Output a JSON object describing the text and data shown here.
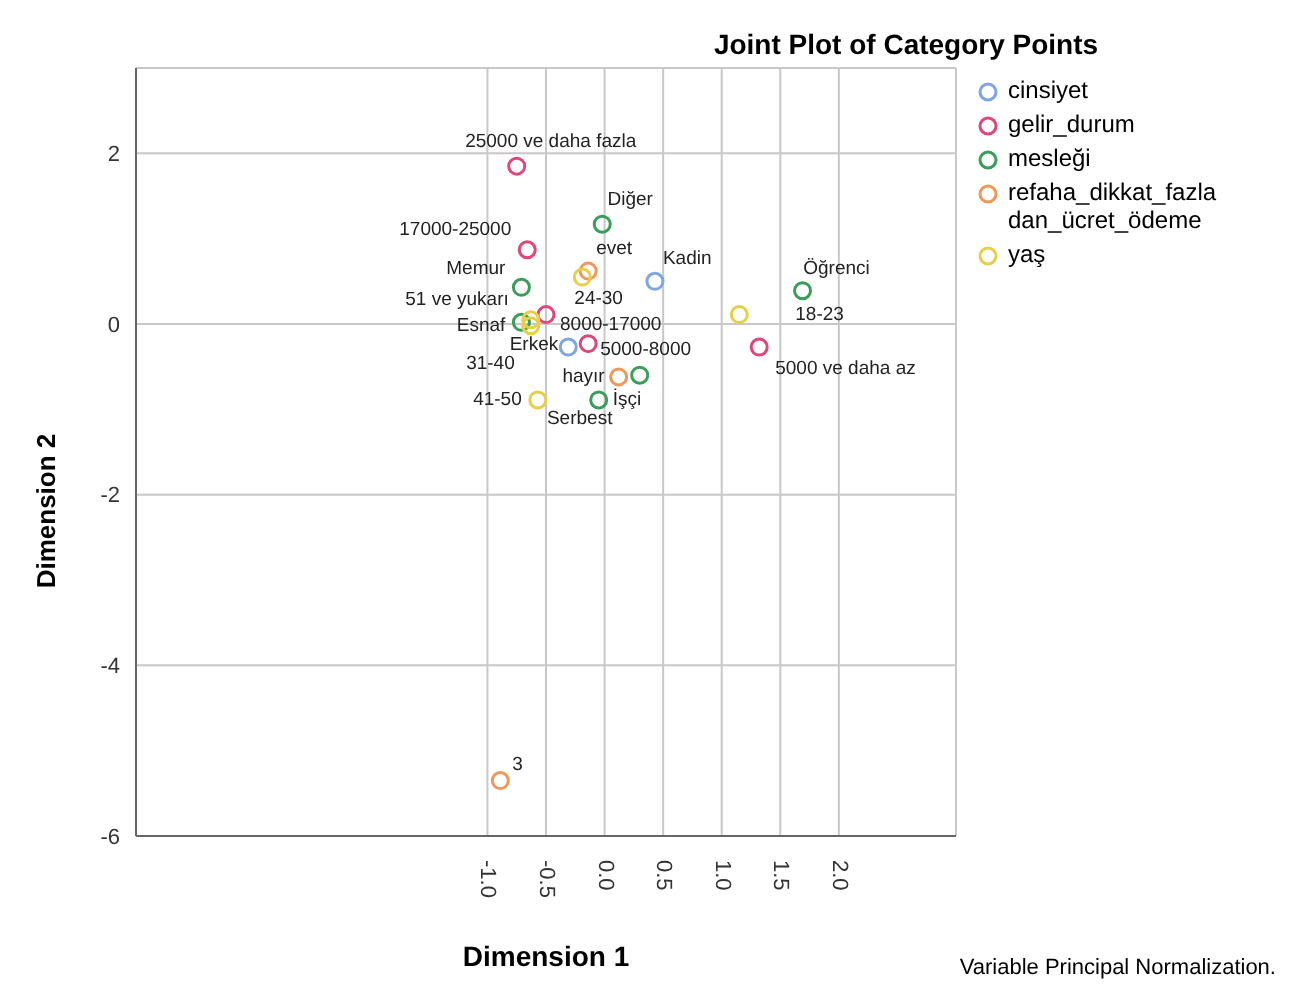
{
  "chart_data": {
    "type": "scatter",
    "title": "Joint Plot of Category Points",
    "xlabel": "Dimension 1",
    "ylabel": "Dimension 2",
    "xlim": [
      -4,
      3
    ],
    "ylim": [
      -6,
      3
    ],
    "xticks": [
      {
        "value": -1,
        "label": "-1.0"
      },
      {
        "value": -0.5,
        "label": "-0.5"
      },
      {
        "value": 0,
        "label": "0.0"
      },
      {
        "value": 0.5,
        "label": "0.5"
      },
      {
        "value": 1,
        "label": "1.0"
      },
      {
        "value": 1.5,
        "label": "1.5"
      },
      {
        "value": 2,
        "label": "2.0"
      }
    ],
    "yticks": [
      -6,
      -4,
      -2,
      0,
      2
    ],
    "grid": true,
    "legend": "top right",
    "marker": "circle",
    "annotations": [
      "Variable Principal Normalization.",
      {
        "text": "Kadin",
        "x": 0.43,
        "y": 0.5
      },
      {
        "text": "Erkek",
        "x": -0.31,
        "y": -0.27
      },
      {
        "text": "25000 ve daha fazla",
        "x": -0.75,
        "y": 1.85
      },
      {
        "text": "17000-25000",
        "x": -0.66,
        "y": 0.87
      },
      {
        "text": "8000-17000",
        "x": -0.5,
        "y": 0.11
      },
      {
        "text": "5000-8000",
        "x": -0.14,
        "y": -0.23
      },
      {
        "text": "5000 ve daha az",
        "x": 1.32,
        "y": -0.27
      },
      {
        "text": "Diğer",
        "x": -0.02,
        "y": 1.17
      },
      {
        "text": "Memur",
        "x": -0.71,
        "y": 0.43
      },
      {
        "text": "Esnaf",
        "x": -0.71,
        "y": 0.02
      },
      {
        "text": "Öğrenci",
        "x": 1.69,
        "y": 0.39
      },
      {
        "text": "İşçi",
        "x": -0.05,
        "y": -0.89
      },
      {
        "text": "Serbest",
        "x": 0.3,
        "y": -0.6
      },
      {
        "text": "evet",
        "x": -0.14,
        "y": 0.62
      },
      {
        "text": "hayır",
        "x": 0.12,
        "y": -0.62
      },
      {
        "text": "3",
        "x": -0.89,
        "y": -5.35
      },
      {
        "text": "18-23",
        "x": 1.15,
        "y": 0.11
      },
      {
        "text": "24-30",
        "x": -0.19,
        "y": 0.55
      },
      {
        "text": "31-40",
        "x": -0.63,
        "y": -0.02
      },
      {
        "text": "41-50",
        "x": -0.57,
        "y": -0.89
      },
      {
        "text": "51 ve yukarı",
        "x": -0.63,
        "y": 0.05
      }
    ],
    "series": [
      {
        "name": "cinsiyet",
        "color": "#7ea6e0",
        "x": [
          0.43,
          -0.31
        ],
        "values": [
          0.5,
          -0.27
        ]
      },
      {
        "name": "gelir_durum",
        "color": "#e0457b",
        "x": [
          -0.75,
          -0.66,
          -0.5,
          -0.14,
          1.32
        ],
        "values": [
          1.85,
          0.87,
          0.11,
          -0.23,
          -0.27
        ]
      },
      {
        "name": "mesleği",
        "color": "#3a9e5a",
        "x": [
          -0.02,
          -0.71,
          -0.71,
          1.69,
          -0.05,
          0.3
        ],
        "values": [
          1.17,
          0.43,
          0.02,
          0.39,
          -0.89,
          -0.6
        ]
      },
      {
        "name": "refaha_dikkat_fazladan_ücret_ödeme",
        "color": "#f0985a",
        "x": [
          -0.14,
          0.12,
          -0.89
        ],
        "values": [
          0.62,
          -0.62,
          -5.35
        ]
      },
      {
        "name": "yaş",
        "color": "#e8cf4a",
        "x": [
          1.15,
          -0.19,
          -0.63,
          -0.57,
          -0.63
        ],
        "values": [
          0.11,
          0.55,
          -0.02,
          -0.89,
          0.05
        ]
      }
    ]
  }
}
